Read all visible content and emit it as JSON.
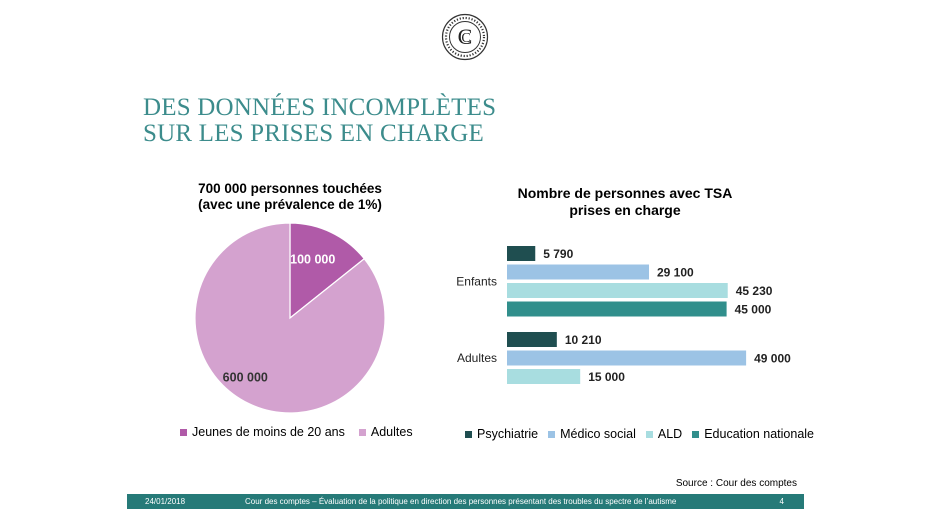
{
  "title_lines": [
    "DES DONNÉES INCOMPLÈTES",
    "SUR LES PRISES EN CHARGE"
  ],
  "colors": {
    "title": "#3c8c8c",
    "footer_bg": "#267a78",
    "jeunes": "#b05aa8",
    "adultes": "#d4a2cf",
    "psychiatrie": "#1f4e50",
    "medico_social": "#9cc3e5",
    "ald": "#a8dde0",
    "education_nationale": "#318f8c"
  },
  "chart_data": [
    {
      "type": "pie",
      "title_lines": [
        "700 000 personnes touchées",
        "(avec une prévalence de 1%)"
      ],
      "slices": [
        {
          "name": "Jeunes de moins de 20 ans",
          "value": 100000,
          "label": "100 000",
          "color": "#b05aa8"
        },
        {
          "name": "Adultes",
          "value": 600000,
          "label": "600 000",
          "color": "#d4a2cf"
        }
      ]
    },
    {
      "type": "bar",
      "orientation": "horizontal",
      "title_lines": [
        "Nombre de personnes avec TSA",
        "prises en charge"
      ],
      "xlim": [
        0,
        50000
      ],
      "groups": [
        {
          "name": "Enfants",
          "bars": [
            {
              "series": "Psychiatrie",
              "value": 5790,
              "label": "5 790",
              "color": "#1f4e50"
            },
            {
              "series": "Médico social",
              "value": 29100,
              "label": "29 100",
              "color": "#9cc3e5"
            },
            {
              "series": "ALD",
              "value": 45230,
              "label": "45 230",
              "color": "#a8dde0"
            },
            {
              "series": "Education nationale",
              "value": 45000,
              "label": "45 000",
              "color": "#318f8c"
            }
          ]
        },
        {
          "name": "Adultes",
          "bars": [
            {
              "series": "Psychiatrie",
              "value": 10210,
              "label": "10 210",
              "color": "#1f4e50"
            },
            {
              "series": "Médico social",
              "value": 49000,
              "label": "49 000",
              "color": "#9cc3e5"
            },
            {
              "series": "ALD",
              "value": 15000,
              "label": "15 000",
              "color": "#a8dde0"
            }
          ]
        }
      ],
      "legend": [
        {
          "name": "Psychiatrie",
          "color": "#1f4e50"
        },
        {
          "name": "Médico social",
          "color": "#9cc3e5"
        },
        {
          "name": "ALD",
          "color": "#a8dde0"
        },
        {
          "name": "Education nationale",
          "color": "#318f8c"
        }
      ]
    }
  ],
  "source": "Source : Cour des comptes",
  "footer": {
    "date": "24/01/2018",
    "description": "Cour des comptes – Évaluation de la politique en direction des personnes présentant des troubles du spectre de l’autisme",
    "page": "4"
  }
}
